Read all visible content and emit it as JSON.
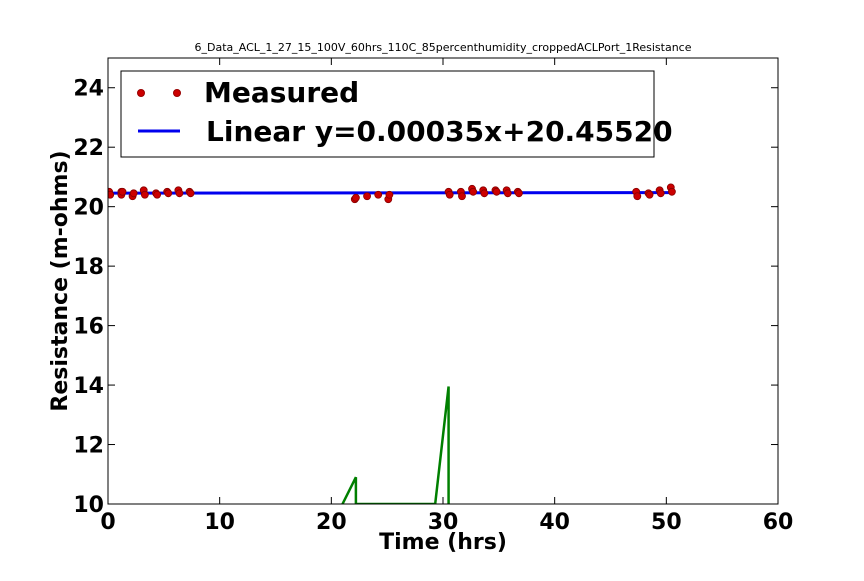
{
  "chart_data": {
    "type": "scatter",
    "title": "6_Data_ACL_1_27_15_100V_60hrs_110C_85percenthumidity_croppedACLPort_1Resistance",
    "xlabel": "Time (hrs)",
    "ylabel": "Resistance (m-ohms)",
    "xlim": [
      0,
      60
    ],
    "ylim": [
      10,
      25
    ],
    "xticks": [
      "0",
      "10",
      "20",
      "30",
      "40",
      "50",
      "60"
    ],
    "yticks": [
      "10",
      "12",
      "14",
      "16",
      "18",
      "20",
      "22",
      "24"
    ],
    "grid": false,
    "legend_position": "top-left",
    "series": [
      {
        "name": "Measured",
        "kind": "scatter",
        "color": "#cc0000",
        "x": [
          0.1,
          0.2,
          1.2,
          1.2,
          1.3,
          2.2,
          2.3,
          3.2,
          3.3,
          4.3,
          4.4,
          5.3,
          5.4,
          6.3,
          6.4,
          7.3,
          7.4,
          22.1,
          22.2,
          23.2,
          24.2,
          25.1,
          25.2,
          30.5,
          30.6,
          31.6,
          31.7,
          32.6,
          32.7,
          33.6,
          33.7,
          34.7,
          34.8,
          35.7,
          35.8,
          36.7,
          36.8,
          47.3,
          47.4,
          48.4,
          48.5,
          49.4,
          49.5,
          50.4,
          50.5
        ],
        "y": [
          20.5,
          20.4,
          20.5,
          20.4,
          20.5,
          20.35,
          20.45,
          20.55,
          20.4,
          20.45,
          20.4,
          20.5,
          20.45,
          20.55,
          20.45,
          20.5,
          20.45,
          20.25,
          20.3,
          20.35,
          20.4,
          20.25,
          20.4,
          20.5,
          20.4,
          20.5,
          20.35,
          20.6,
          20.5,
          20.55,
          20.45,
          20.55,
          20.5,
          20.55,
          20.45,
          20.5,
          20.45,
          20.5,
          20.35,
          20.45,
          20.4,
          20.55,
          20.45,
          20.65,
          20.5
        ]
      },
      {
        "name": "Linear y=0.00035x+20.45520",
        "kind": "line",
        "color": "#0000ee",
        "x": [
          0,
          50.5
        ],
        "y": [
          20.4552,
          20.473
        ]
      },
      {
        "name": "",
        "kind": "line",
        "color": "#008000",
        "x": [
          21.0,
          22.2,
          22.2,
          29.3,
          30.5,
          30.5
        ],
        "y": [
          10,
          10.9,
          10,
          10,
          13.95,
          10
        ]
      }
    ]
  }
}
